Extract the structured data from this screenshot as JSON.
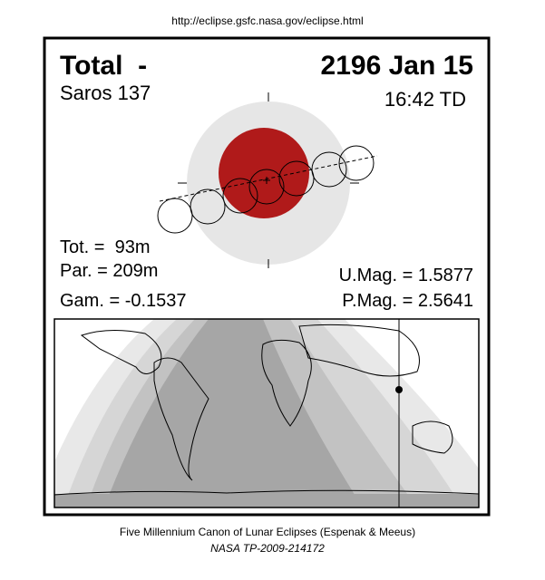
{
  "header": {
    "url": "http://eclipse.gsfc.nasa.gov/eclipse.html"
  },
  "panel": {
    "type": "Total  -",
    "date": "2196 Jan 15",
    "saros": "Saros 137",
    "time": "16:42 TD",
    "total_duration": "Tot. =  93m",
    "partial_duration": "Par. = 209m",
    "gamma": "Gam. = -0.1537",
    "umbral_magnitude": "U.Mag. = 1.5877",
    "penumbral_magnitude": "P.Mag. = 2.5641"
  },
  "footer": {
    "canon": "Five Millennium Canon of Lunar Eclipses (Espenak & Meeus)",
    "publication": "NASA TP-2009-214172"
  }
}
